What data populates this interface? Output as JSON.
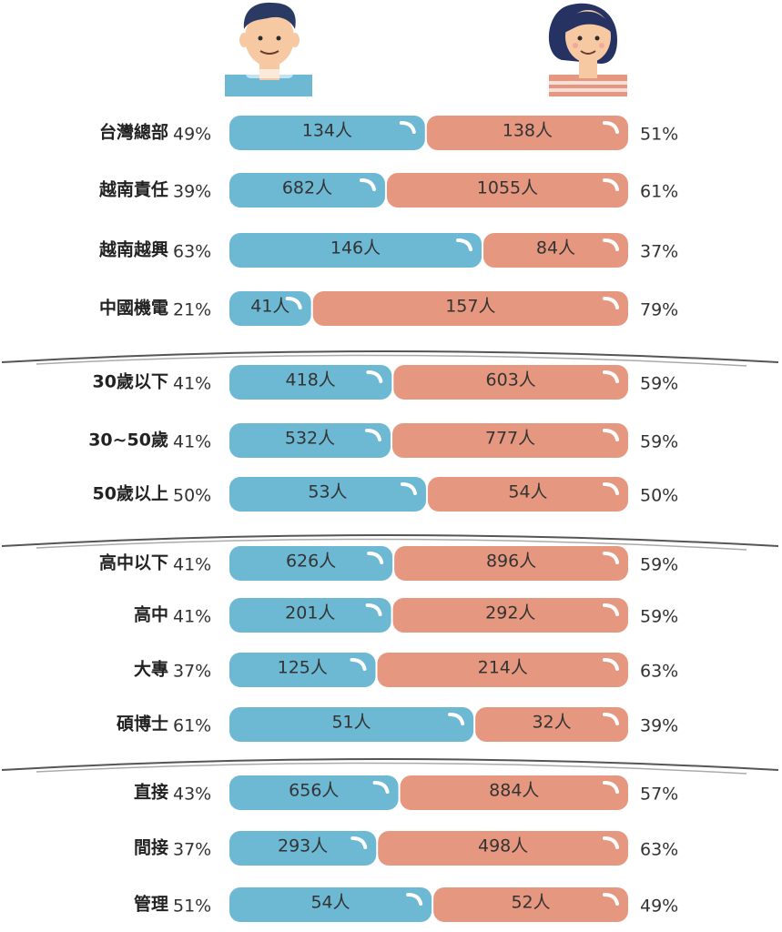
{
  "colors": {
    "male": "#6db9d4",
    "female": "#e6977f",
    "divider": "#555555",
    "skin": "#f7c9a2",
    "male_hair": "#2b3a63",
    "female_hair": "#253262",
    "male_shirt": "#6db9d4",
    "female_shirt": "#e6977f"
  },
  "icons": {
    "male": "male-avatar-icon",
    "female": "female-avatar-icon"
  },
  "chart_data": {
    "type": "bar",
    "orientation": "horizontal-stacked-100",
    "legend": "none",
    "grid": false,
    "series_colors": [
      "#6db9d4",
      "#e6977f"
    ],
    "groups": [
      {
        "rows": [
          {
            "label": "台灣總部",
            "male": {
              "count": "134人",
              "pct": "49%",
              "value": 134
            },
            "female": {
              "count": "138人",
              "pct": "51%",
              "value": 138
            }
          },
          {
            "label": "越南責任",
            "male": {
              "count": "682人",
              "pct": "39%",
              "value": 682
            },
            "female": {
              "count": "1055人",
              "pct": "61%",
              "value": 1055
            }
          },
          {
            "label": "越南越興",
            "male": {
              "count": "146人",
              "pct": "63%",
              "value": 146
            },
            "female": {
              "count": "84人",
              "pct": "37%",
              "value": 84
            }
          },
          {
            "label": "中國機電",
            "male": {
              "count": "41人",
              "pct": "21%",
              "value": 41
            },
            "female": {
              "count": "157人",
              "pct": "79%",
              "value": 157
            }
          }
        ]
      },
      {
        "rows": [
          {
            "label": "30歲以下",
            "male": {
              "count": "418人",
              "pct": "41%",
              "value": 418
            },
            "female": {
              "count": "603人",
              "pct": "59%",
              "value": 603
            }
          },
          {
            "label": "30~50歲",
            "male": {
              "count": "532人",
              "pct": "41%",
              "value": 532
            },
            "female": {
              "count": "777人",
              "pct": "59%",
              "value": 777
            }
          },
          {
            "label": "50歲以上",
            "male": {
              "count": "53人",
              "pct": "50%",
              "value": 53
            },
            "female": {
              "count": "54人",
              "pct": "50%",
              "value": 54
            }
          }
        ]
      },
      {
        "rows": [
          {
            "label": "高中以下",
            "male": {
              "count": "626人",
              "pct": "41%",
              "value": 626
            },
            "female": {
              "count": "896人",
              "pct": "59%",
              "value": 896
            }
          },
          {
            "label": "高中",
            "male": {
              "count": "201人",
              "pct": "41%",
              "value": 201
            },
            "female": {
              "count": "292人",
              "pct": "59%",
              "value": 292
            }
          },
          {
            "label": "大專",
            "male": {
              "count": "125人",
              "pct": "37%",
              "value": 125
            },
            "female": {
              "count": "214人",
              "pct": "63%",
              "value": 214
            }
          },
          {
            "label": "碩博士",
            "male": {
              "count": "51人",
              "pct": "61%",
              "value": 51
            },
            "female": {
              "count": "32人",
              "pct": "39%",
              "value": 32
            }
          }
        ]
      },
      {
        "rows": [
          {
            "label": "直接",
            "male": {
              "count": "656人",
              "pct": "43%",
              "value": 656
            },
            "female": {
              "count": "884人",
              "pct": "57%",
              "value": 884
            }
          },
          {
            "label": "間接",
            "male": {
              "count": "293人",
              "pct": "37%",
              "value": 293
            },
            "female": {
              "count": "498人",
              "pct": "63%",
              "value": 498
            }
          },
          {
            "label": "管理",
            "male": {
              "count": "54人",
              "pct": "51%",
              "value": 54
            },
            "female": {
              "count": "52人",
              "pct": "49%",
              "value": 52
            }
          }
        ]
      }
    ]
  }
}
